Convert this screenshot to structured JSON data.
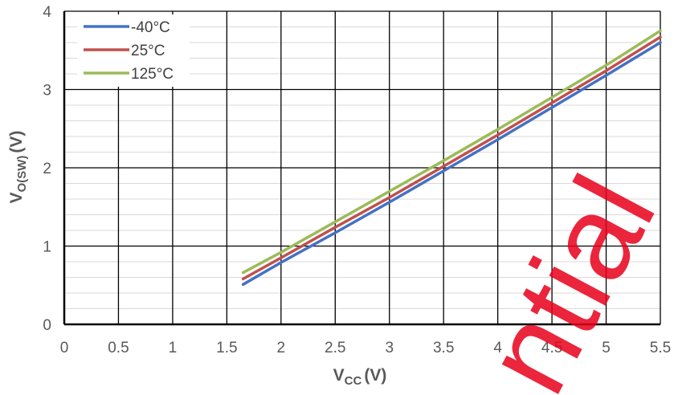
{
  "chart_data": {
    "type": "line",
    "xlabel": {
      "main": "V",
      "sub": "CC",
      "unit": "(V)"
    },
    "ylabel": {
      "main": "V",
      "sub": "O(SW)",
      "unit": "(V)"
    },
    "xlim": [
      0,
      5.5
    ],
    "ylim": [
      0,
      4
    ],
    "x_ticks": [
      "0",
      "0.5",
      "1",
      "1.5",
      "2",
      "2.5",
      "3",
      "3.5",
      "4",
      "4.5",
      "5",
      "5.5"
    ],
    "y_ticks": [
      "0",
      "1",
      "2",
      "3",
      "4"
    ],
    "grid": true,
    "legend_position": "top-left",
    "series": [
      {
        "name": "-40°C",
        "color": "#4472c4",
        "x": [
          1.65,
          2.0,
          2.5,
          3.0,
          3.5,
          4.0,
          4.5,
          5.0,
          5.5
        ],
        "y": [
          0.51,
          0.79,
          1.17,
          1.56,
          1.96,
          2.36,
          2.77,
          3.18,
          3.6
        ]
      },
      {
        "name": "25°C",
        "color": "#c0504d",
        "x": [
          1.65,
          2.0,
          2.5,
          3.0,
          3.5,
          4.0,
          4.5,
          5.0,
          5.5
        ],
        "y": [
          0.58,
          0.85,
          1.24,
          1.62,
          2.02,
          2.42,
          2.83,
          3.24,
          3.67
        ]
      },
      {
        "name": "125°C",
        "color": "#9bbb59",
        "x": [
          1.65,
          2.0,
          2.5,
          3.0,
          3.5,
          4.0,
          4.5,
          5.0,
          5.5
        ],
        "y": [
          0.66,
          0.92,
          1.31,
          1.7,
          2.09,
          2.49,
          2.9,
          3.31,
          3.75
        ]
      }
    ]
  },
  "watermark": "ntial"
}
